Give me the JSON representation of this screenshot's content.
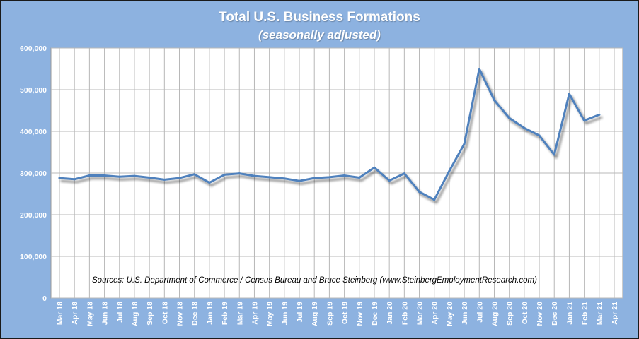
{
  "chart_data": {
    "type": "line",
    "title": "Total U.S. Business Formations",
    "subtitle": "(seasonally adjusted)",
    "source": "Sources: U.S. Department of Commerce / Census Bureau and Bruce Steinberg (www.SteinbergEmploymentResearch.com)",
    "y_ticks": [
      "0",
      "100,000",
      "200,000",
      "300,000",
      "400,000",
      "500,000",
      "600,000"
    ],
    "ylim": [
      0,
      600000
    ],
    "grid": true,
    "categories": [
      "Mar 18",
      "Apr 18",
      "May 18",
      "Jun 18",
      "Jul 18",
      "Aug 18",
      "Sep 18",
      "Oct 18",
      "Nov 18",
      "Dec 18",
      "Jan 19",
      "Feb 19",
      "Mar 19",
      "Apr 19",
      "May 19",
      "Jun 19",
      "Jul 19",
      "Aug 19",
      "Sep 19",
      "Oct 19",
      "Nov 19",
      "Dec 19",
      "Jan 20",
      "Feb 20",
      "Mar 20",
      "Apr 20",
      "May 20",
      "Jun 20",
      "Jul 20",
      "Aug 20",
      "Sep 20",
      "Oct 20",
      "Nov 20",
      "Dec 20",
      "Jan 21",
      "Feb 21",
      "Mar 21",
      "Apr 21"
    ],
    "series": [
      {
        "values": [
          288000,
          285000,
          294000,
          294000,
          291000,
          293000,
          289000,
          284000,
          288000,
          297000,
          277000,
          296000,
          299000,
          293000,
          290000,
          287000,
          281000,
          288000,
          290000,
          294000,
          289000,
          313000,
          282000,
          299000,
          255000,
          236000,
          305000,
          370000,
          550000,
          475000,
          432000,
          408000,
          390000,
          344000,
          490000,
          426000,
          440000,
          null
        ]
      }
    ],
    "colors": {
      "line": "#4f81bd",
      "plot_background": "#ffffff",
      "frame_background": "#8db2e0",
      "grid": "#b8b8b8"
    }
  }
}
